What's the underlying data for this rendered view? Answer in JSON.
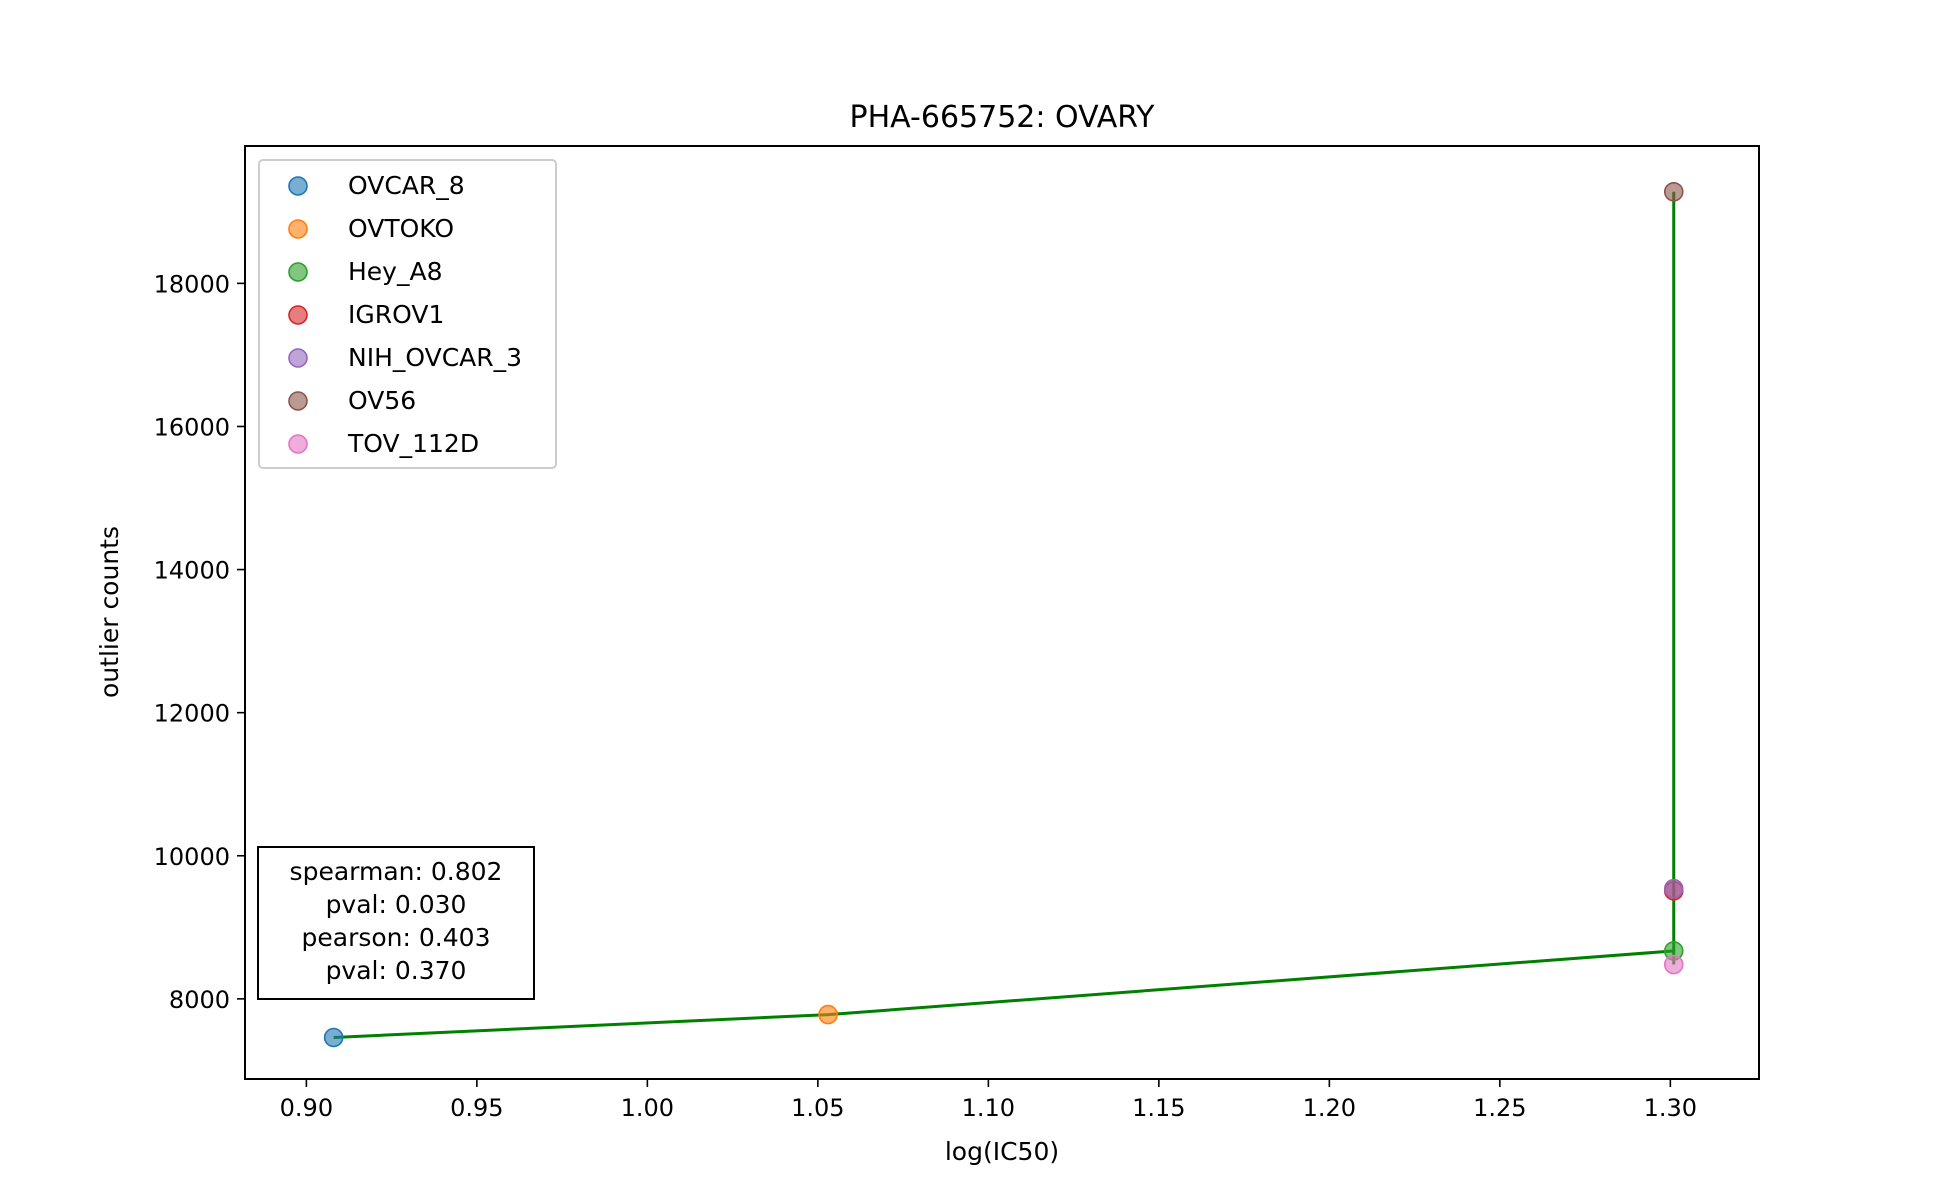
{
  "chart_data": {
    "type": "scatter",
    "title": "PHA-665752: OVARY",
    "xlabel": "log(IC50)",
    "ylabel": "outlier counts",
    "xlim": [
      0.882,
      1.326
    ],
    "ylim": [
      6880,
      19920
    ],
    "xticks": [
      0.9,
      0.95,
      1.0,
      1.05,
      1.1,
      1.15,
      1.2,
      1.25,
      1.3
    ],
    "xtick_labels": [
      "0.90",
      "0.95",
      "1.00",
      "1.05",
      "1.10",
      "1.15",
      "1.20",
      "1.25",
      "1.30"
    ],
    "yticks": [
      8000,
      10000,
      12000,
      14000,
      16000,
      18000
    ],
    "ytick_labels": [
      "8000",
      "10000",
      "12000",
      "14000",
      "16000",
      "18000"
    ],
    "grid": false,
    "legend_position": "top-left",
    "series": [
      {
        "name": "OVCAR_8",
        "color": "#1f77b4",
        "x": 0.908,
        "y": 7460
      },
      {
        "name": "OVTOKO",
        "color": "#ff7f0e",
        "x": 1.053,
        "y": 7780
      },
      {
        "name": "Hey_A8",
        "color": "#2ca02c",
        "x": 1.301,
        "y": 8670
      },
      {
        "name": "IGROV1",
        "color": "#d62728",
        "x": 1.301,
        "y": 9510
      },
      {
        "name": "NIH_OVCAR_3",
        "color": "#9467bd",
        "x": 1.301,
        "y": 9540
      },
      {
        "name": "OV56",
        "color": "#8c564b",
        "x": 1.301,
        "y": 19280
      },
      {
        "name": "TOV_112D",
        "color": "#e377c2",
        "x": 1.301,
        "y": 8480
      }
    ],
    "fit_line": {
      "color": "#008000",
      "points": [
        [
          0.908,
          7460
        ],
        [
          1.053,
          7780
        ],
        [
          1.301,
          8670
        ],
        [
          1.301,
          19280
        ],
        [
          1.301,
          8480
        ]
      ]
    },
    "stats": {
      "lines": [
        "spearman: 0.802",
        "pval: 0.030",
        "pearson: 0.403",
        "pval: 0.370"
      ]
    }
  }
}
